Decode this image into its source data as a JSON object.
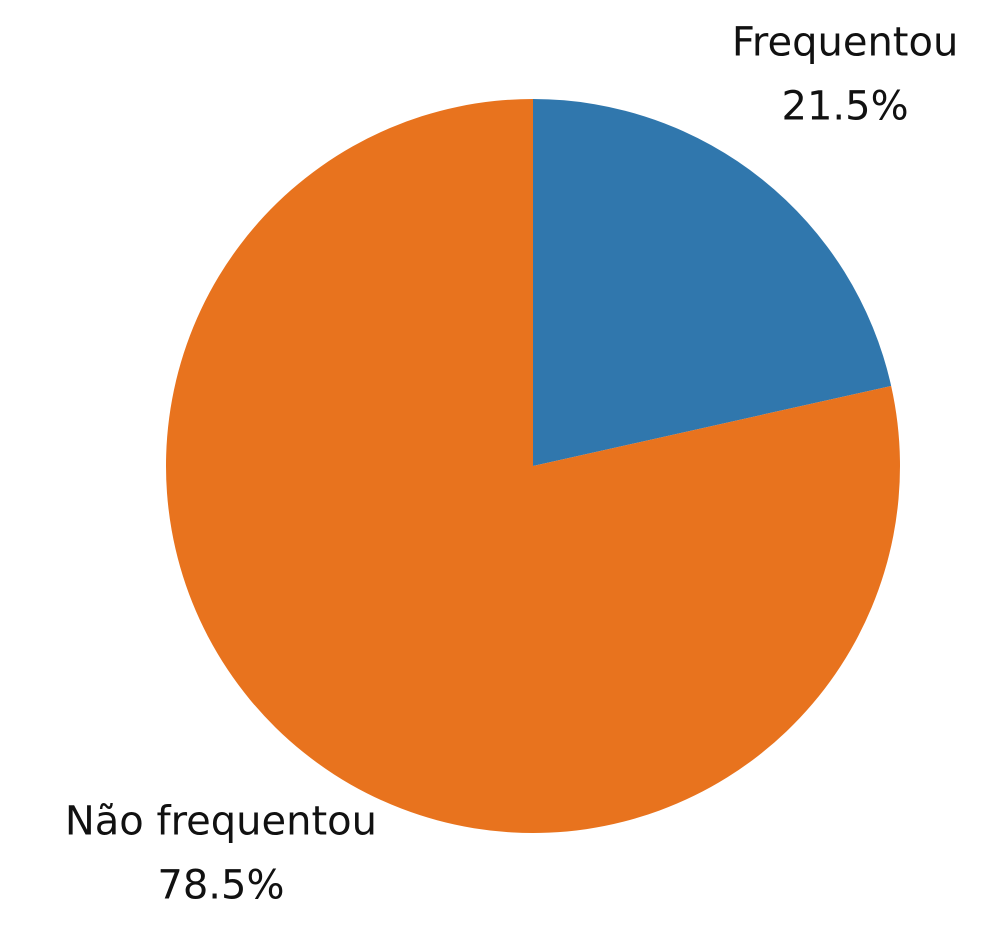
{
  "chart_data": {
    "type": "pie",
    "categories": [
      "Frequentou",
      "Não frequentou"
    ],
    "values": [
      21.5,
      78.5
    ],
    "value_labels": [
      "21.5%",
      "78.5%"
    ],
    "colors": [
      "#3077ad",
      "#e8731e"
    ]
  }
}
